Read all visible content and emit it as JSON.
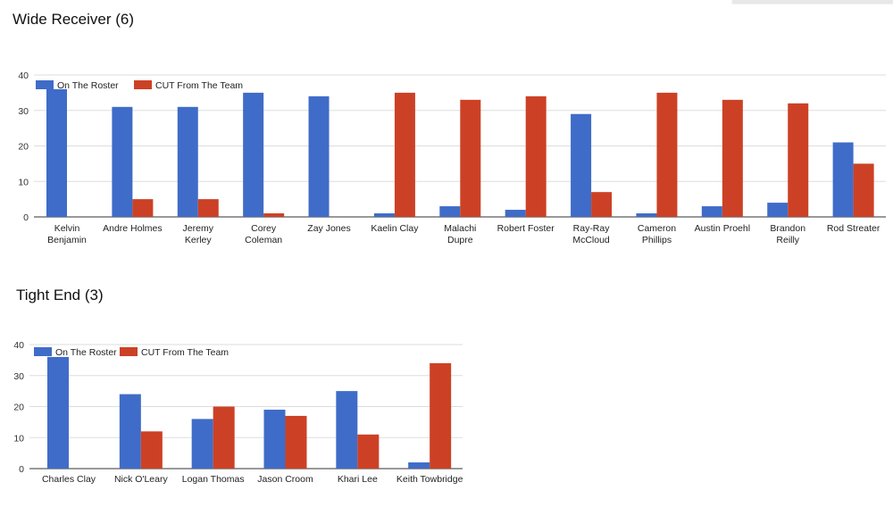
{
  "colors": {
    "roster": "#3f6cc8",
    "cut": "#cc4125",
    "grid": "#dddddd",
    "axis": "#333333"
  },
  "sections": {
    "wide_receiver": {
      "title": "Wide Receiver (6)"
    },
    "tight_end": {
      "title": "Tight End (3)"
    }
  },
  "chart_data": [
    {
      "type": "bar",
      "title": "Wide Receiver (6)",
      "legend_position": "top-left",
      "grid": true,
      "ylim": [
        0,
        40
      ],
      "yticks": [
        0,
        10,
        20,
        30,
        40
      ],
      "categories": [
        "Kelvin Benjamin",
        "Andre Holmes",
        "Jeremy Kerley",
        "Corey Coleman",
        "Zay Jones",
        "Kaelin Clay",
        "Malachi Dupre",
        "Robert Foster",
        "Ray-Ray McCloud",
        "Cameron Phillips",
        "Austin Proehl",
        "Brandon Reilly",
        "Rod Streater"
      ],
      "series": [
        {
          "name": "On The Roster",
          "values": [
            36,
            31,
            31,
            35,
            34,
            1,
            3,
            2,
            29,
            1,
            3,
            4,
            21
          ]
        },
        {
          "name": "CUT From The Team",
          "values": [
            0,
            5,
            5,
            1,
            0,
            35,
            33,
            34,
            7,
            35,
            33,
            32,
            15
          ]
        }
      ]
    },
    {
      "type": "bar",
      "title": "Tight End (3)",
      "legend_position": "top-left",
      "grid": true,
      "ylim": [
        0,
        40
      ],
      "yticks": [
        0,
        10,
        20,
        30,
        40
      ],
      "categories": [
        "Charles Clay",
        "Nick O'Leary",
        "Logan Thomas",
        "Jason Croom",
        "Khari Lee",
        "Keith Towbridge"
      ],
      "series": [
        {
          "name": "On The Roster",
          "values": [
            36,
            24,
            16,
            19,
            25,
            2
          ]
        },
        {
          "name": "CUT From The Team",
          "values": [
            0,
            12,
            20,
            17,
            11,
            34
          ]
        }
      ]
    }
  ]
}
